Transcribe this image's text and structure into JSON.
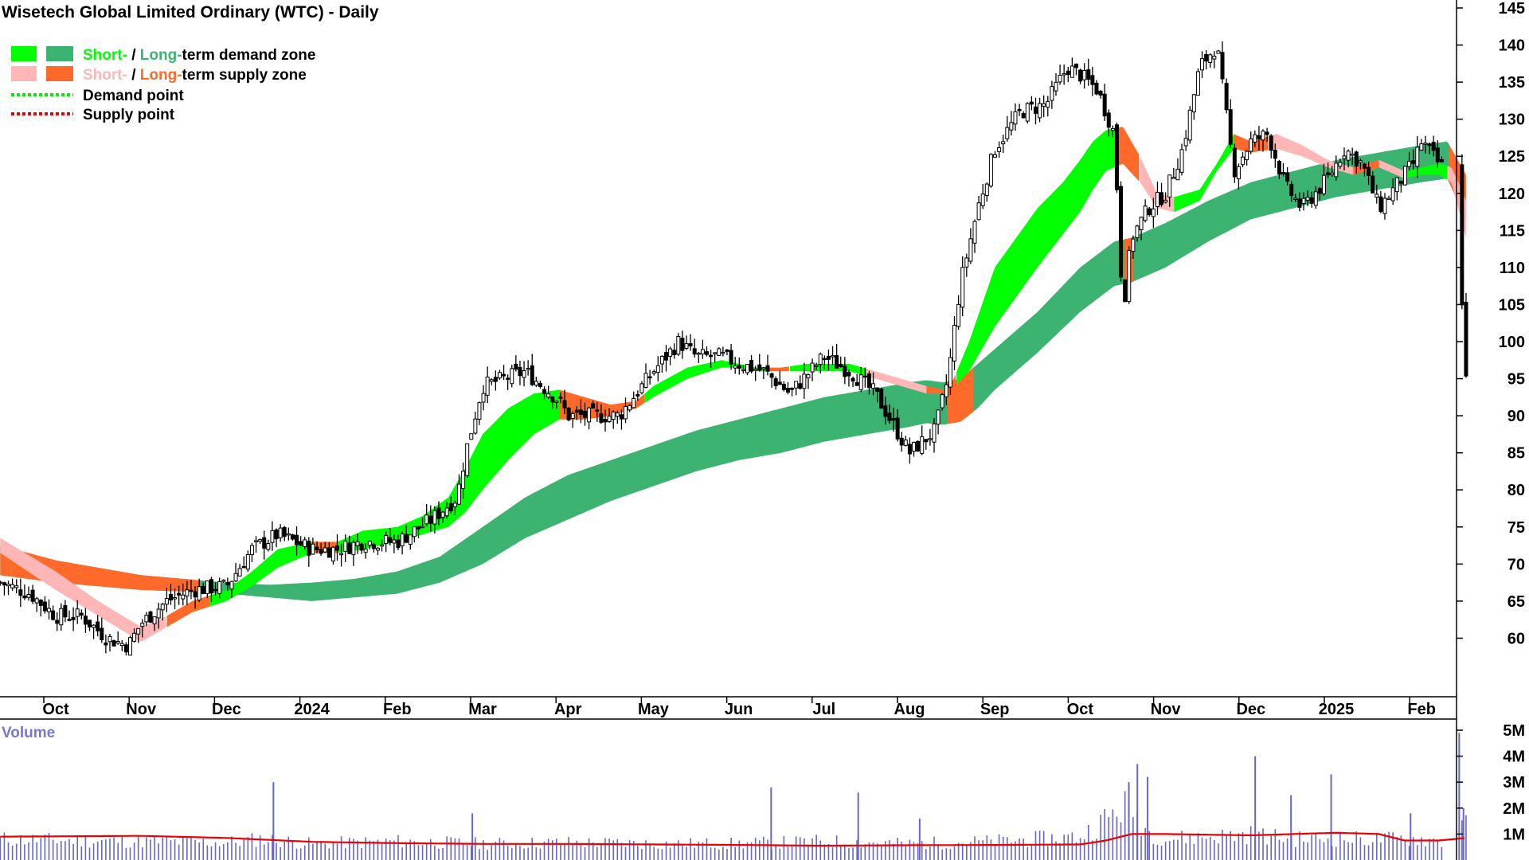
{
  "chart_data": {
    "type": "candlestick",
    "title": "Wisetech Global Limited Ordinary (WTC) - Daily",
    "legend": {
      "demand_zone": {
        "short": "Short-",
        "sep": " / ",
        "long": "Long-",
        "rest": "term demand zone"
      },
      "supply_zone": {
        "short": "Short-",
        "sep": " / ",
        "long": "Long-",
        "rest": "term supply zone"
      },
      "demand_point": "Demand point",
      "supply_point": "Supply point"
    },
    "colors": {
      "short_demand": "#00ff00",
      "long_demand": "#3cb371",
      "short_supply": "#ffb6b6",
      "long_supply": "#ff6a2a",
      "demand_point": "#00ee00",
      "supply_point": "#ee0000",
      "volume": "#6666cc",
      "volume_avg": "#ee0000",
      "candle": "#000000"
    },
    "price_axis": {
      "min": 55,
      "max": 145,
      "ticks": [
        145,
        140,
        135,
        130,
        125,
        120,
        115,
        110,
        105,
        100,
        95,
        90,
        85,
        80,
        75,
        70,
        65,
        60
      ]
    },
    "time_axis": {
      "labels": [
        "Oct",
        "Nov",
        "Dec",
        "2024",
        "Feb",
        "Mar",
        "Apr",
        "May",
        "Jun",
        "Jul",
        "Aug",
        "Sep",
        "Oct",
        "Nov",
        "Dec",
        "2025",
        "Feb"
      ],
      "positions": [
        0.0,
        1.0,
        2.0,
        3.0,
        4.0,
        5.0,
        6.0,
        7.0,
        8.0,
        9.0,
        10.0,
        11.0,
        12.0,
        13.0,
        14.0,
        15.0,
        16.0
      ]
    },
    "volume_panel": {
      "title": "Volume",
      "ticks": [
        "5M",
        "4M",
        "3M",
        "2M",
        "1M"
      ],
      "tick_values": [
        5,
        4,
        3,
        2,
        1
      ],
      "unit": "M"
    },
    "price_series": {
      "t": [
        -0.65,
        -0.3,
        0.0,
        0.3,
        0.6,
        0.85,
        1.0,
        1.3,
        1.6,
        2.0,
        2.3,
        2.6,
        3.0,
        3.3,
        3.6,
        4.0,
        4.4,
        4.7,
        4.8,
        5.0,
        5.5,
        5.9,
        6.0,
        6.3,
        6.6,
        7.0,
        7.3,
        7.5,
        7.8,
        8.0,
        8.3,
        8.6,
        9.0,
        9.3,
        9.6,
        10.0,
        10.3,
        10.45,
        10.6,
        10.8,
        11.0,
        11.3,
        11.6,
        11.85,
        12.0,
        12.2,
        12.4,
        12.5,
        12.6,
        12.8,
        13.0,
        13.2,
        13.4,
        13.6,
        13.8,
        14.0,
        14.2,
        14.4,
        14.6,
        14.9,
        15.1,
        15.3,
        15.5,
        15.7,
        15.9,
        16.0,
        16.2,
        16.4,
        16.52
      ],
      "close": [
        67.5,
        66,
        63,
        63,
        60,
        59,
        62,
        65,
        66.5,
        67,
        72,
        74,
        72,
        72,
        73,
        73,
        76,
        79,
        85,
        94,
        96,
        92,
        90,
        90,
        90,
        96,
        100,
        98,
        98,
        97,
        96,
        93,
        98,
        96,
        93,
        85,
        88,
        95,
        108,
        118,
        126,
        131,
        132,
        137,
        136,
        134,
        128,
        104,
        114,
        118,
        120,
        126,
        137,
        140,
        123,
        127,
        128,
        121,
        118,
        122,
        126,
        124,
        118,
        121,
        124,
        127,
        124,
        122,
        95
      ]
    },
    "volume_series": {
      "t": [
        -0.65,
        0.0,
        1.0,
        2.0,
        2.4,
        3.0,
        4.0,
        5.0,
        6.0,
        7.0,
        7.8,
        8.0,
        9.0,
        10.0,
        11.0,
        12.0,
        12.4,
        12.55,
        12.8,
        13.0,
        13.5,
        14.0,
        14.5,
        15.0,
        15.5,
        16.0,
        16.4,
        16.52
      ],
      "values": [
        0.9,
        0.85,
        0.8,
        0.75,
        0.9,
        0.7,
        0.8,
        0.7,
        0.75,
        0.7,
        0.7,
        0.7,
        0.8,
        0.7,
        0.8,
        1.0,
        2.0,
        2.5,
        1.2,
        0.9,
        1.0,
        1.1,
        0.9,
        0.9,
        0.9,
        0.9,
        0.7,
        2.2
      ]
    },
    "volume_spikes": {
      "t": [
        2.55,
        4.88,
        8.38,
        9.4,
        10.12,
        12.57,
        12.67,
        12.79,
        14.05,
        14.47,
        14.94,
        15.87,
        16.44,
        16.49
      ],
      "values": [
        3.0,
        1.8,
        2.8,
        2.6,
        1.6,
        3.0,
        3.7,
        3.2,
        4.0,
        2.5,
        3.3,
        1.8,
        4.9,
        2.0
      ]
    },
    "volume_avg": {
      "t": [
        -0.65,
        1.0,
        2.0,
        3.0,
        4.0,
        5.0,
        6.0,
        7.0,
        8.0,
        9.0,
        10.0,
        11.0,
        12.0,
        12.3,
        12.6,
        13.0,
        14.0,
        14.5,
        15.0,
        15.5,
        15.8,
        16.2,
        16.52
      ],
      "values": [
        0.9,
        0.93,
        0.85,
        0.7,
        0.65,
        0.62,
        0.62,
        0.6,
        0.58,
        0.55,
        0.57,
        0.58,
        0.6,
        0.75,
        1.0,
        1.0,
        0.95,
        1.0,
        1.05,
        1.0,
        0.75,
        0.75,
        0.85
      ]
    },
    "long_term_zone": {
      "t": [
        -0.65,
        0.0,
        0.5,
        1.0,
        1.5,
        2.0,
        2.5,
        3.0,
        3.5,
        4.0,
        4.5,
        5.0,
        5.5,
        6.0,
        6.5,
        7.0,
        7.5,
        8.0,
        8.5,
        9.0,
        9.5,
        10.0,
        10.2,
        10.4,
        10.6,
        10.8,
        11.0,
        11.5,
        12.0,
        12.4,
        12.6,
        13.0,
        13.5,
        14.0,
        14.5,
        15.0,
        15.5,
        16.0,
        16.3,
        16.52
      ],
      "upper": [
        72.5,
        70.5,
        69.5,
        68.5,
        68.0,
        67.5,
        67.2,
        67.5,
        68.0,
        69.0,
        71.0,
        75.0,
        79.0,
        82.0,
        84.0,
        86.0,
        88.0,
        89.5,
        91.0,
        92.5,
        93.5,
        94.5,
        94.8,
        94.5,
        95.0,
        97.0,
        99.0,
        104.0,
        110.0,
        113.5,
        114.0,
        116.0,
        119.0,
        121.5,
        123.0,
        124.5,
        125.5,
        126.5,
        127.0,
        122.5
      ],
      "lower": [
        68.5,
        67.5,
        67.0,
        66.5,
        66.3,
        66.0,
        65.5,
        65.0,
        65.5,
        66.0,
        67.5,
        70.0,
        73.5,
        76.0,
        78.5,
        80.5,
        82.5,
        84.0,
        85.0,
        86.5,
        87.5,
        88.5,
        89.0,
        88.8,
        89.2,
        91.0,
        93.5,
        98.5,
        104.0,
        107.5,
        108.0,
        110.0,
        113.5,
        116.5,
        118.0,
        119.5,
        120.5,
        121.5,
        122.0,
        116.5
      ]
    },
    "short_term_zone": {
      "t": [
        -0.65,
        0.0,
        0.5,
        1.0,
        1.3,
        1.6,
        2.0,
        2.3,
        2.6,
        3.0,
        3.3,
        3.6,
        4.0,
        4.3,
        4.6,
        4.8,
        5.0,
        5.3,
        5.6,
        5.9,
        6.2,
        6.5,
        6.8,
        7.0,
        7.4,
        7.8,
        8.0,
        8.2,
        8.5,
        8.8,
        9.0,
        9.3,
        9.6,
        9.9,
        10.2,
        10.4,
        10.5,
        10.7,
        11.0,
        11.5,
        11.8,
        12.0,
        12.15,
        12.3,
        12.5,
        12.7,
        12.9,
        13.1,
        13.4,
        13.6,
        13.8,
        14.0,
        14.3,
        14.6,
        14.9,
        15.2,
        15.5,
        15.8,
        16.0,
        16.2,
        16.35,
        16.45,
        16.52
      ],
      "upper": [
        73.5,
        69.0,
        65.0,
        61.5,
        63.0,
        65.0,
        66.5,
        69.0,
        72.0,
        73.0,
        73.0,
        74.5,
        75.0,
        76.5,
        79.0,
        83.0,
        87.5,
        91.0,
        93.0,
        93.5,
        92.5,
        91.5,
        92.0,
        94.0,
        96.5,
        97.5,
        97.0,
        96.5,
        96.5,
        97.0,
        97.0,
        97.0,
        96.0,
        95.0,
        94.0,
        93.5,
        94.5,
        100.0,
        110.0,
        118.0,
        121.5,
        124.5,
        127.0,
        128.5,
        129.0,
        125.0,
        120.0,
        119.5,
        120.5,
        124.0,
        128.0,
        127.0,
        128.0,
        126.5,
        124.5,
        123.5,
        124.5,
        123.0,
        123.5,
        124.0,
        123.5,
        121.0,
        119.0
      ],
      "lower": [
        71.5,
        66.5,
        63.0,
        59.5,
        61.5,
        63.5,
        65.0,
        67.0,
        69.5,
        71.5,
        71.5,
        72.0,
        73.0,
        74.0,
        75.0,
        77.0,
        80.0,
        84.0,
        87.5,
        89.5,
        89.5,
        90.0,
        91.0,
        92.5,
        95.0,
        96.5,
        96.5,
        96.0,
        96.0,
        96.0,
        96.0,
        96.0,
        95.0,
        94.0,
        93.0,
        93.0,
        93.5,
        96.0,
        102.0,
        110.0,
        114.5,
        117.5,
        120.5,
        123.0,
        124.0,
        121.5,
        118.0,
        117.5,
        119.0,
        123.0,
        126.0,
        125.5,
        126.0,
        125.0,
        123.5,
        122.5,
        123.5,
        122.0,
        122.5,
        122.5,
        121.5,
        117.0,
        114.0
      ]
    },
    "long_term_colors": {
      "supply_segments": [
        [
          -0.65,
          1.7
        ],
        [
          10.45,
          10.75
        ],
        [
          12.52,
          12.62
        ],
        [
          16.32,
          16.52
        ]
      ]
    },
    "short_term_colors": {
      "segments": [
        {
          "from": -0.65,
          "to": 1.3,
          "zone": "short_supply"
        },
        {
          "from": 1.3,
          "to": 1.8,
          "zone": "long_supply"
        },
        {
          "from": 1.8,
          "to": 3.0,
          "zone": "short_demand"
        },
        {
          "from": 3.0,
          "to": 3.3,
          "zone": "long_supply"
        },
        {
          "from": 3.3,
          "to": 5.9,
          "zone": "short_demand"
        },
        {
          "from": 5.9,
          "to": 6.9,
          "zone": "long_supply"
        },
        {
          "from": 6.9,
          "to": 8.35,
          "zone": "short_demand"
        },
        {
          "from": 8.35,
          "to": 8.6,
          "zone": "long_supply"
        },
        {
          "from": 8.6,
          "to": 9.5,
          "zone": "short_demand"
        },
        {
          "from": 9.5,
          "to": 10.2,
          "zone": "short_supply"
        },
        {
          "from": 10.2,
          "to": 10.55,
          "zone": "long_supply"
        },
        {
          "from": 10.55,
          "to": 12.45,
          "zone": "short_demand"
        },
        {
          "from": 12.45,
          "to": 12.7,
          "zone": "long_supply"
        },
        {
          "from": 12.7,
          "to": 13.1,
          "zone": "short_supply"
        },
        {
          "from": 13.1,
          "to": 13.8,
          "zone": "short_demand"
        },
        {
          "from": 13.8,
          "to": 14.2,
          "zone": "long_supply"
        },
        {
          "from": 14.2,
          "to": 15.2,
          "zone": "short_supply"
        },
        {
          "from": 15.2,
          "to": 15.5,
          "zone": "long_supply"
        },
        {
          "from": 15.5,
          "to": 15.8,
          "zone": "short_supply"
        },
        {
          "from": 15.8,
          "to": 16.3,
          "zone": "short_demand"
        },
        {
          "from": 16.3,
          "to": 16.52,
          "zone": "short_supply"
        }
      ]
    }
  }
}
